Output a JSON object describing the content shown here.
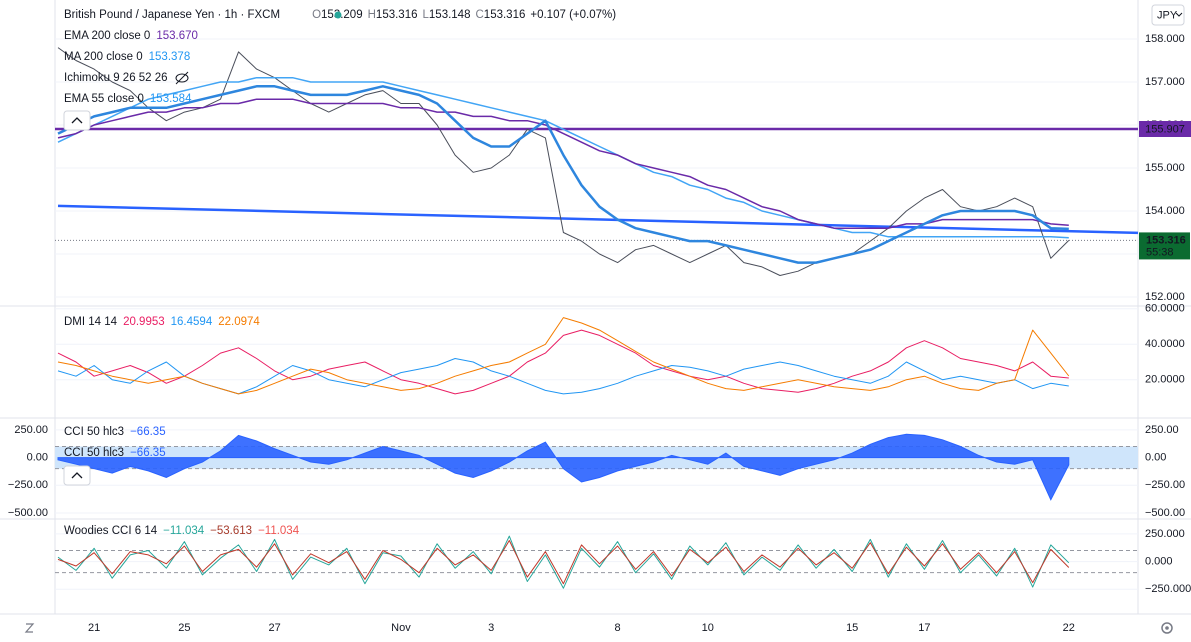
{
  "header": {
    "symbol": "British Pound / Japanese Yen · 1h · FXCM",
    "ohlc": [
      {
        "key": "O",
        "value": "153.209"
      },
      {
        "key": "H",
        "value": "153.316"
      },
      {
        "key": "L",
        "value": "153.148"
      },
      {
        "key": "C",
        "value": "153.316"
      }
    ],
    "change": "+0.107 (+0.07%)",
    "currency": "JPY"
  },
  "chart_data": [
    {
      "type": "line",
      "ylim": [
        151.814,
        158.907
      ],
      "yticks": [
        {
          "value": 152,
          "label": "152.000"
        },
        {
          "value": 153,
          "label": "153.000"
        },
        {
          "value": 154,
          "label": "154.000"
        },
        {
          "value": 155,
          "label": "155.000"
        },
        {
          "value": 156,
          "label": "156.000"
        },
        {
          "value": 157,
          "label": "157.000"
        },
        {
          "value": 158,
          "label": "158.000"
        }
      ],
      "legend": [
        {
          "title": "EMA 200 close 0",
          "readout": [
            {
              "text": "153.670",
              "color": "#6a2aa8"
            }
          ]
        },
        {
          "title": "MA 200 close 0",
          "readout": [
            {
              "text": "153.378",
              "color": "#2196f3"
            }
          ]
        },
        {
          "title": "Ichimoku 9 26 52 26",
          "readout": []
        },
        {
          "title": "EMA 55 close 0",
          "readout": [
            {
              "text": "153.584",
              "color": "#2196f3"
            }
          ]
        }
      ],
      "hlines": [
        {
          "value": 155.907,
          "color": "#6a2aa8"
        }
      ],
      "trendline": {
        "values": [
          154.12,
          153.49
        ],
        "color": "#2962ff"
      },
      "last_price": 153.316,
      "countdown": "55:38",
      "series": [
        {
          "color": "#4a4e5a",
          "width": 1,
          "values": [
            157.8,
            157.5,
            157.3,
            157.0,
            156.8,
            156.4,
            156.1,
            156.3,
            156.4,
            156.6,
            157.7,
            157.3,
            157.1,
            156.8,
            156.5,
            156.3,
            156.5,
            156.7,
            156.8,
            156.5,
            156.5,
            156.0,
            155.3,
            154.9,
            155.0,
            155.3,
            155.9,
            155.7,
            153.5,
            153.3,
            153.0,
            152.8,
            153.1,
            153.2,
            153.0,
            152.8,
            153.0,
            153.2,
            152.8,
            152.7,
            152.5,
            152.6,
            152.8,
            152.9,
            153.0,
            153.3,
            153.6,
            154.0,
            154.3,
            154.5,
            154.1,
            154.0,
            154.1,
            154.3,
            154.1,
            152.9,
            153.316
          ]
        },
        {
          "color": "#42a5f5",
          "width": 1.5,
          "values": [
            155.6,
            155.8,
            156.0,
            156.2,
            156.4,
            156.6,
            156.7,
            156.8,
            156.9,
            157.0,
            157.0,
            157.1,
            157.1,
            157.1,
            157.0,
            157.0,
            157.0,
            157.0,
            157.0,
            156.9,
            156.8,
            156.7,
            156.6,
            156.5,
            156.4,
            156.3,
            156.2,
            156.1,
            155.9,
            155.7,
            155.5,
            155.3,
            155.1,
            154.9,
            154.8,
            154.6,
            154.5,
            154.3,
            154.2,
            154.0,
            153.9,
            153.8,
            153.7,
            153.6,
            153.5,
            153.5,
            153.4,
            153.4,
            153.4,
            153.4,
            153.4,
            153.4,
            153.4,
            153.4,
            153.4,
            153.4,
            153.378
          ]
        },
        {
          "color": "#6a2aa8",
          "width": 1.5,
          "values": [
            155.7,
            155.8,
            156.0,
            156.1,
            156.2,
            156.3,
            156.3,
            156.4,
            156.4,
            156.5,
            156.5,
            156.6,
            156.6,
            156.6,
            156.5,
            156.5,
            156.5,
            156.5,
            156.5,
            156.4,
            156.4,
            156.3,
            156.3,
            156.2,
            156.2,
            156.1,
            156.1,
            156.0,
            155.8,
            155.6,
            155.4,
            155.3,
            155.1,
            155.0,
            154.9,
            154.8,
            154.6,
            154.5,
            154.3,
            154.1,
            154.0,
            153.8,
            153.7,
            153.6,
            153.6,
            153.6,
            153.6,
            153.7,
            153.7,
            153.8,
            153.8,
            153.8,
            153.8,
            153.8,
            153.8,
            153.7,
            153.67
          ]
        },
        {
          "color": "#2e86de",
          "width": 2.5,
          "values": [
            155.8,
            156.0,
            156.2,
            156.3,
            156.4,
            156.4,
            156.4,
            156.5,
            156.6,
            156.7,
            156.8,
            156.9,
            156.9,
            156.8,
            156.7,
            156.7,
            156.7,
            156.8,
            156.9,
            156.8,
            156.7,
            156.5,
            156.1,
            155.7,
            155.5,
            155.5,
            155.8,
            156.1,
            155.3,
            154.6,
            154.1,
            153.8,
            153.6,
            153.5,
            153.4,
            153.3,
            153.3,
            153.2,
            153.1,
            153.0,
            152.9,
            152.8,
            152.8,
            152.9,
            153.0,
            153.1,
            153.3,
            153.5,
            153.7,
            153.9,
            154.0,
            154.0,
            154.0,
            154.0,
            153.9,
            153.6,
            153.584
          ]
        }
      ]
    },
    {
      "type": "line",
      "ylim": [
        -1,
        61
      ],
      "yticks": [
        {
          "value": 20,
          "label": "20.0000"
        },
        {
          "value": 40,
          "label": "40.0000"
        },
        {
          "value": 60,
          "label": "60.0000"
        }
      ],
      "legend": [
        {
          "title": "DMI 14 14",
          "readout": [
            {
              "text": "20.9953",
              "color": "#e91e63"
            },
            {
              "text": "16.4594",
              "color": "#2196f3"
            },
            {
              "text": "22.0974",
              "color": "#f57c00"
            }
          ]
        }
      ],
      "series": [
        {
          "color": "#e91e63",
          "width": 1,
          "values": [
            35,
            30,
            22,
            25,
            28,
            24,
            18,
            22,
            28,
            35,
            38,
            32,
            25,
            20,
            22,
            26,
            28,
            30,
            25,
            20,
            18,
            15,
            12,
            14,
            18,
            22,
            30,
            35,
            45,
            48,
            45,
            40,
            35,
            28,
            25,
            22,
            20,
            22,
            18,
            15,
            14,
            13,
            15,
            18,
            22,
            25,
            30,
            38,
            42,
            38,
            32,
            30,
            28,
            25,
            30,
            22,
            20.9953
          ]
        },
        {
          "color": "#2196f3",
          "width": 1,
          "values": [
            25,
            22,
            28,
            20,
            18,
            25,
            30,
            22,
            18,
            15,
            12,
            16,
            22,
            28,
            25,
            20,
            18,
            16,
            20,
            24,
            26,
            28,
            32,
            30,
            25,
            22,
            18,
            14,
            12,
            13,
            15,
            18,
            22,
            25,
            28,
            27,
            25,
            22,
            26,
            28,
            30,
            28,
            25,
            22,
            20,
            18,
            22,
            30,
            25,
            20,
            22,
            20,
            18,
            20,
            15,
            18,
            16.4594
          ]
        },
        {
          "color": "#f57c00",
          "width": 1,
          "values": [
            30,
            28,
            25,
            22,
            20,
            18,
            20,
            22,
            18,
            15,
            12,
            14,
            18,
            22,
            26,
            24,
            20,
            18,
            16,
            14,
            15,
            18,
            22,
            25,
            28,
            30,
            35,
            40,
            55,
            52,
            48,
            42,
            36,
            30,
            26,
            22,
            18,
            15,
            14,
            16,
            18,
            20,
            18,
            16,
            15,
            14,
            16,
            20,
            22,
            18,
            15,
            14,
            18,
            20,
            48,
            35,
            22.0974
          ]
        }
      ]
    },
    {
      "type": "area",
      "ylim": [
        -545,
        348
      ],
      "left_axis": true,
      "yticks": [
        {
          "value": -500,
          "label": "−500.00"
        },
        {
          "value": -250,
          "label": "−250.00"
        },
        {
          "value": 0,
          "label": "0.00"
        },
        {
          "value": 250,
          "label": "250.00"
        }
      ],
      "legend": [
        {
          "title": "CCI 50 hlc3",
          "readout": [
            {
              "text": "−66.35",
              "color": "#2962ff"
            }
          ]
        }
      ],
      "bands": [
        100,
        -100
      ],
      "series": [
        {
          "color": "#2962ff",
          "values": [
            -20,
            -60,
            -100,
            -140,
            -80,
            -120,
            -180,
            -100,
            -40,
            60,
            200,
            150,
            80,
            20,
            -40,
            -60,
            -20,
            40,
            100,
            60,
            20,
            -60,
            -140,
            -180,
            -120,
            -40,
            60,
            140,
            -100,
            -220,
            -180,
            -120,
            -80,
            -40,
            20,
            -20,
            -60,
            40,
            -80,
            -120,
            -160,
            -100,
            -60,
            -20,
            40,
            120,
            180,
            210,
            200,
            160,
            100,
            20,
            -40,
            -60,
            -20,
            -380,
            -66.35
          ]
        }
      ]
    },
    {
      "type": "line",
      "ylim": [
        -473,
        375
      ],
      "yticks": [
        {
          "value": -250,
          "label": "−250.000"
        },
        {
          "value": 0,
          "label": "0.000"
        },
        {
          "value": 250,
          "label": "250.000"
        }
      ],
      "legend": [
        {
          "title": "Woodies CCI 6 14",
          "readout": [
            {
              "text": "−11.034",
              "color": "#26a69a"
            },
            {
              "text": "−53.613",
              "color": "#a63a2a"
            },
            {
              "text": "−11.034",
              "color": "#ef5350"
            }
          ]
        }
      ],
      "bands": [
        100,
        -100
      ],
      "categories": [
        null,
        null,
        "21",
        null,
        null,
        null,
        null,
        "25",
        null,
        null,
        null,
        null,
        "27",
        null,
        null,
        null,
        null,
        null,
        null,
        "Nov",
        null,
        null,
        null,
        null,
        "3",
        null,
        null,
        null,
        null,
        null,
        null,
        "8",
        null,
        null,
        null,
        null,
        "10",
        null,
        null,
        null,
        null,
        null,
        null,
        null,
        "15",
        null,
        null,
        null,
        "17",
        null,
        null,
        null,
        null,
        null,
        null,
        null,
        "22"
      ],
      "series": [
        {
          "color": "#26a69a",
          "width": 1,
          "values": [
            40,
            -80,
            120,
            -150,
            60,
            100,
            -60,
            180,
            -120,
            30,
            150,
            -90,
            200,
            -160,
            40,
            -30,
            120,
            -200,
            80,
            50,
            -140,
            160,
            -60,
            90,
            -110,
            230,
            -180,
            60,
            -240,
            120,
            -50,
            180,
            -100,
            70,
            -160,
            140,
            -30,
            170,
            -120,
            40,
            -80,
            150,
            -60,
            110,
            -90,
            200,
            -140,
            160,
            -70,
            190,
            -100,
            60,
            -130,
            120,
            -230,
            150,
            -11.034
          ]
        },
        {
          "color": "#c0392b",
          "width": 1,
          "values": [
            20,
            -40,
            80,
            -110,
            90,
            60,
            -20,
            140,
            -90,
            60,
            110,
            -50,
            160,
            -120,
            70,
            -10,
            90,
            -160,
            100,
            20,
            -100,
            120,
            -30,
            60,
            -80,
            190,
            -140,
            90,
            -200,
            150,
            -20,
            140,
            -70,
            90,
            -130,
            110,
            -10,
            130,
            -90,
            60,
            -50,
            120,
            -30,
            80,
            -60,
            170,
            -110,
            130,
            -40,
            160,
            -70,
            80,
            -100,
            90,
            -190,
            110,
            -53.613
          ]
        }
      ]
    }
  ]
}
